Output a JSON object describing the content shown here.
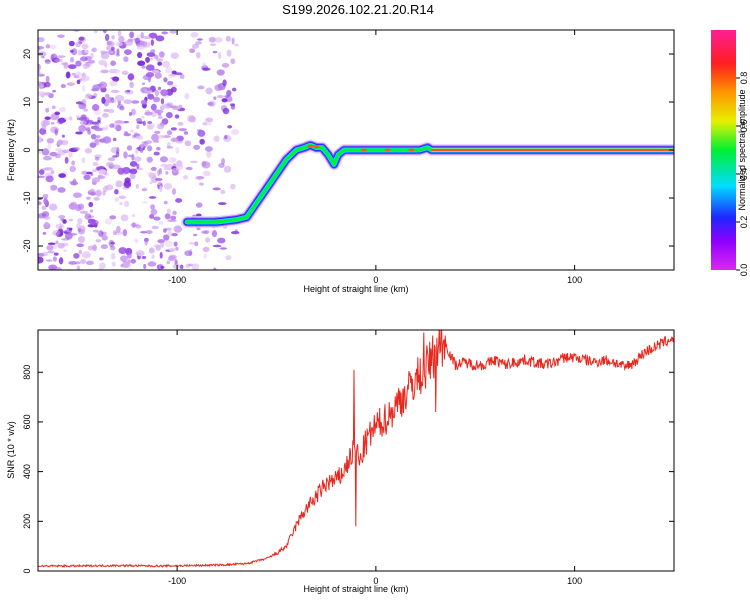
{
  "title": "S199.2026.102.21.20.R14",
  "chart_data": [
    {
      "type": "heatmap",
      "name": "spectrogram",
      "xlabel": "Height of straight line (km)",
      "ylabel": "Frequency (Hz)",
      "xlim": [
        -170,
        150
      ],
      "ylim": [
        -25,
        25
      ],
      "xticks": [
        -100,
        0,
        100
      ],
      "yticks": [
        -20,
        -10,
        0,
        10,
        20
      ],
      "noise_region_x": [
        -170,
        -70
      ],
      "ridge": {
        "x": [
          -95,
          -80,
          -70,
          -65,
          -60,
          -55,
          -50,
          -45,
          -40,
          -36,
          -33,
          -30,
          -27,
          -24,
          -21,
          -19,
          -16,
          -12,
          -6,
          0,
          6,
          12,
          18,
          22,
          26,
          28,
          150
        ],
        "y": [
          -15,
          -15,
          -14.5,
          -14,
          -11,
          -8,
          -5,
          -2,
          0,
          0.5,
          1,
          0.5,
          0.5,
          -1,
          -3,
          -1,
          0,
          0,
          0,
          0,
          0,
          0,
          0,
          0,
          0.5,
          0,
          0
        ]
      },
      "colorbar": {
        "label": "Normalized spectral amplitude",
        "ticks": [
          0.0,
          0.2,
          0.4,
          0.6,
          0.8
        ],
        "range": [
          0,
          1
        ],
        "colors": [
          "#dc28f0",
          "#8c00ff",
          "#1e28ff",
          "#00dcff",
          "#00f032",
          "#e6f000",
          "#ff9600",
          "#ff1e1e",
          "#ff1e96"
        ]
      }
    },
    {
      "type": "line",
      "name": "snr",
      "xlabel": "Height of straight line (km)",
      "ylabel": "SNR (10 * v/v)",
      "xlim": [
        -170,
        150
      ],
      "ylim": [
        0,
        970
      ],
      "xticks": [
        -100,
        0,
        100
      ],
      "yticks": [
        0,
        200,
        400,
        600,
        800
      ],
      "color": "#e8281e",
      "x": [
        -170,
        -150,
        -130,
        -110,
        -90,
        -75,
        -65,
        -60,
        -55,
        -50,
        -45,
        -42,
        -39,
        -36,
        -33,
        -30,
        -27,
        -24,
        -21,
        -18,
        -15,
        -12,
        -10,
        -8,
        -6,
        -4,
        -2,
        0,
        3,
        6,
        9,
        12,
        15,
        18,
        21,
        24,
        27,
        30,
        33,
        36,
        38,
        40,
        45,
        50,
        55,
        60,
        65,
        70,
        75,
        80,
        85,
        90,
        95,
        100,
        105,
        110,
        115,
        120,
        125,
        130,
        135,
        140,
        145,
        150
      ],
      "y": [
        20,
        20,
        22,
        20,
        22,
        25,
        30,
        40,
        50,
        70,
        100,
        150,
        200,
        240,
        270,
        300,
        330,
        360,
        360,
        380,
        420,
        470,
        500,
        430,
        500,
        530,
        560,
        580,
        600,
        620,
        650,
        690,
        710,
        750,
        780,
        800,
        840,
        880,
        920,
        900,
        860,
        830,
        840,
        830,
        830,
        850,
        830,
        840,
        850,
        840,
        830,
        840,
        860,
        860,
        850,
        840,
        850,
        840,
        820,
        840,
        880,
        900,
        920,
        940
      ],
      "spikes": [
        {
          "x": -11,
          "y": 810
        },
        {
          "x": -10,
          "y": 180
        },
        {
          "x": 24,
          "y": 960
        },
        {
          "x": 33,
          "y": 970
        },
        {
          "x": 30,
          "y": 640
        }
      ]
    }
  ]
}
